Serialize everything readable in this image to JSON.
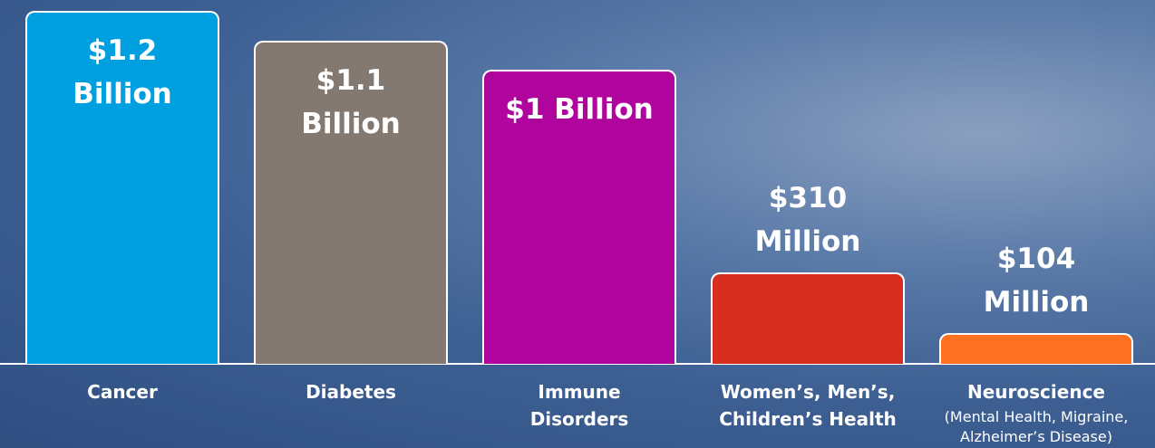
{
  "chart_data": {
    "type": "bar",
    "categories": [
      "Cancer",
      "Diabetes",
      "Immune Disorders",
      "Women’s, Men’s, Children’s Health",
      "Neuroscience"
    ],
    "category_notes": [
      null,
      null,
      null,
      null,
      "(Mental Health, Migraine, Alzheimer’s Disease)"
    ],
    "values": [
      1200000000,
      1100000000,
      1000000000,
      310000000,
      104000000
    ],
    "value_labels": [
      "$1.2 Billion",
      "$1.1 Billion",
      "$1 Billion",
      "$310 Million",
      "$104 Million"
    ],
    "colors": [
      "#00a0e0",
      "#847970",
      "#b0059c",
      "#d82e20",
      "#ff7020"
    ]
  }
}
